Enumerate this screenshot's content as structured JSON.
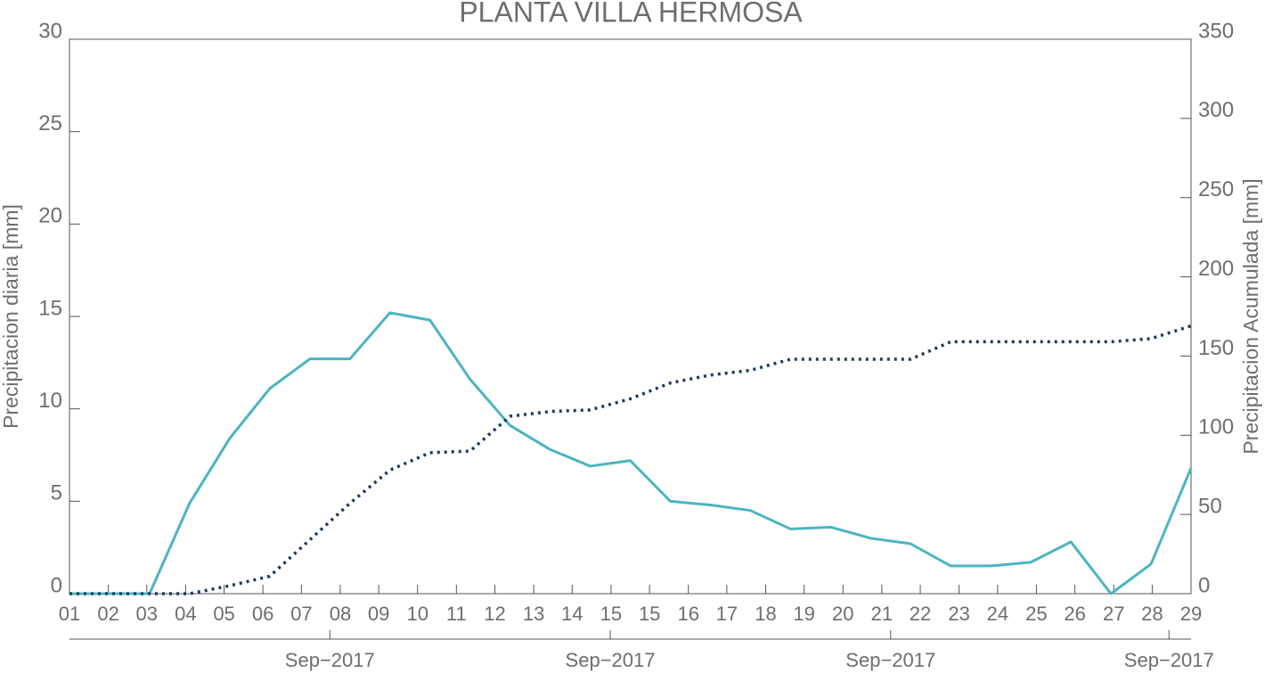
{
  "chart_data": {
    "type": "line",
    "title": "PLANTA VILLA HERMOSA",
    "ylabel": "Precipitacion diaria [mm]",
    "y2label": "Precipitacion Acumulada [mm]",
    "x": [
      1,
      2,
      3,
      4,
      5,
      6,
      7,
      8,
      9,
      10,
      11,
      12,
      13,
      14,
      15,
      16,
      17,
      18,
      19,
      20,
      21,
      22,
      23,
      24,
      25,
      26,
      27,
      28,
      29
    ],
    "series": [
      {
        "color": "#4bb5c1",
        "style": "solid",
        "axis": "y",
        "values": [
          0,
          0,
          0,
          4.9,
          8.4,
          11.1,
          12.7,
          12.7,
          15.2,
          14.8,
          11.6,
          9.1,
          7.8,
          6.9,
          7.2,
          5.0,
          4.8,
          4.5,
          3.5,
          3.6,
          3.0,
          2.7,
          1.5,
          1.5,
          1.7,
          2.8,
          0,
          1.6,
          6.8
        ]
      },
      {
        "color": "#1f3a5f",
        "style": "dotted",
        "axis": "y2",
        "values": [
          0,
          0,
          0,
          0,
          5,
          11,
          34,
          57,
          78,
          89,
          90,
          112,
          115,
          116,
          123,
          133,
          138,
          141,
          148,
          148,
          148,
          148,
          159,
          159,
          159,
          159,
          159,
          161,
          169
        ]
      }
    ],
    "xlim": [
      1,
      29
    ],
    "xticks": [
      {
        "value": 1,
        "label": "01"
      },
      {
        "value": 1.97,
        "label": "02"
      },
      {
        "value": 2.93,
        "label": "03"
      },
      {
        "value": 3.9,
        "label": "04"
      },
      {
        "value": 4.86,
        "label": "05"
      },
      {
        "value": 5.83,
        "label": "06"
      },
      {
        "value": 6.79,
        "label": "07"
      },
      {
        "value": 7.76,
        "label": "08"
      },
      {
        "value": 8.72,
        "label": "09"
      },
      {
        "value": 9.69,
        "label": "10"
      },
      {
        "value": 10.66,
        "label": "11"
      },
      {
        "value": 11.62,
        "label": "12"
      },
      {
        "value": 12.59,
        "label": "13"
      },
      {
        "value": 13.55,
        "label": "14"
      },
      {
        "value": 14.52,
        "label": "15"
      },
      {
        "value": 15.48,
        "label": "15"
      },
      {
        "value": 16.45,
        "label": "16"
      },
      {
        "value": 17.41,
        "label": "17"
      },
      {
        "value": 18.38,
        "label": "18"
      },
      {
        "value": 19.34,
        "label": "19"
      },
      {
        "value": 20.31,
        "label": "20"
      },
      {
        "value": 21.28,
        "label": "21"
      },
      {
        "value": 22.24,
        "label": "22"
      },
      {
        "value": 23.21,
        "label": "23"
      },
      {
        "value": 24.17,
        "label": "24"
      },
      {
        "value": 25.14,
        "label": "25"
      },
      {
        "value": 26.1,
        "label": "26"
      },
      {
        "value": 27.07,
        "label": "27"
      },
      {
        "value": 28.03,
        "label": "28"
      },
      {
        "value": 29,
        "label": "29"
      }
    ],
    "x2ticks": [
      {
        "value": 7.5,
        "label": "Sep−2017"
      },
      {
        "value": 14.5,
        "label": "Sep−2017"
      },
      {
        "value": 21.5,
        "label": "Sep−2017"
      },
      {
        "value": 28.45,
        "label": "Sep−2017"
      }
    ],
    "ylim": [
      0,
      30
    ],
    "yticks": [
      0,
      5,
      10,
      15,
      20,
      25,
      30
    ],
    "y2lim": [
      0,
      350
    ],
    "y2ticks": [
      0,
      50,
      100,
      150,
      200,
      250,
      300,
      350
    ]
  }
}
